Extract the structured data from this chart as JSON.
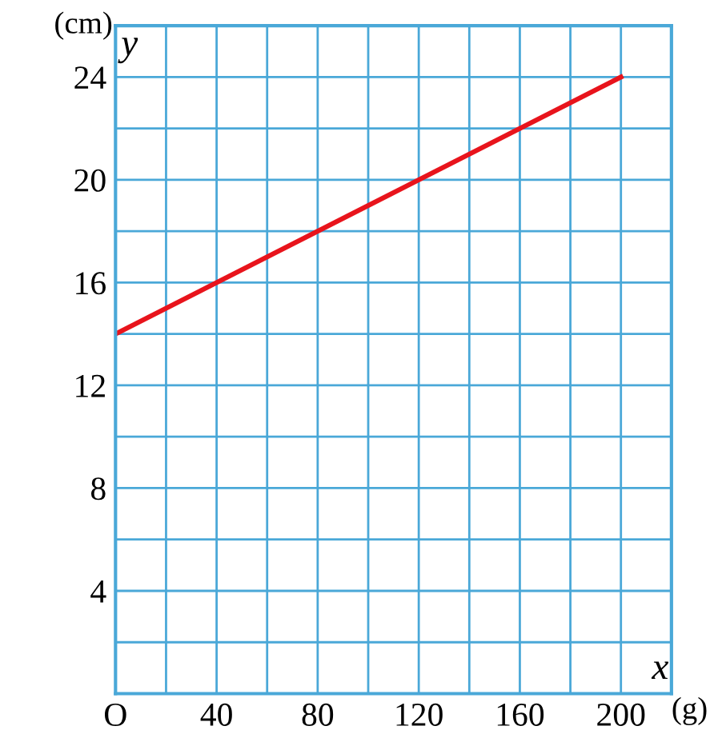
{
  "chart_data": {
    "type": "line",
    "xlabel": "x",
    "ylabel": "y",
    "annotations": [
      "(cm)",
      "(g)"
    ],
    "x": [
      0,
      200
    ],
    "series": [
      {
        "color": "#e8141c",
        "values": [
          14,
          24
        ]
      }
    ],
    "xlim": [
      0,
      220
    ],
    "ylim": [
      0,
      26
    ],
    "xticks": [
      {
        "value": 0,
        "label": "O"
      },
      {
        "value": 20,
        "label": null
      },
      40,
      {
        "value": 60,
        "label": null
      },
      80,
      {
        "value": 100,
        "label": null
      },
      120,
      {
        "value": 140,
        "label": null
      },
      160,
      {
        "value": 180,
        "label": null
      },
      200,
      {
        "value": 220,
        "label": null
      }
    ],
    "yticks": [
      {
        "value": 0,
        "label": null
      },
      {
        "value": 2,
        "label": null
      },
      4,
      {
        "value": 6,
        "label": null
      },
      8,
      {
        "value": 10,
        "label": null
      },
      12,
      {
        "value": 14,
        "label": null
      },
      16,
      {
        "value": 18,
        "label": null
      },
      20,
      {
        "value": 22,
        "label": null
      },
      24,
      {
        "value": 26,
        "label": null
      }
    ],
    "grid": true,
    "marker": "none",
    "line_style": "solid"
  }
}
